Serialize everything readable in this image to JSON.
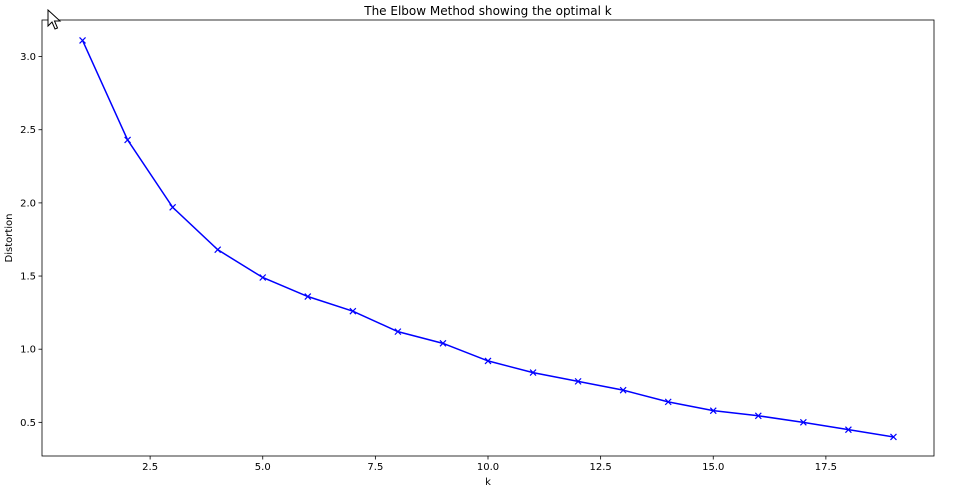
{
  "chart_data": {
    "type": "line",
    "title": "The Elbow Method showing the optimal k",
    "xlabel": "k",
    "ylabel": "Distortion",
    "xlim": [
      0.1,
      19.9
    ],
    "ylim": [
      0.27,
      3.25
    ],
    "xticks": [
      2.5,
      5.0,
      7.5,
      10.0,
      12.5,
      15.0,
      17.5
    ],
    "xtick_labels": [
      "2.5",
      "5.0",
      "7.5",
      "10.0",
      "12.5",
      "15.0",
      "17.5"
    ],
    "yticks": [
      0.5,
      1.0,
      1.5,
      2.0,
      2.5,
      3.0
    ],
    "ytick_labels": [
      "0.5",
      "1.0",
      "1.5",
      "2.0",
      "2.5",
      "3.0"
    ],
    "grid": false,
    "marker": "x",
    "series": [
      {
        "color": "#0000ff",
        "x": [
          1,
          2,
          3,
          4,
          5,
          6,
          7,
          8,
          9,
          10,
          11,
          12,
          13,
          14,
          15,
          16,
          17,
          18,
          19
        ],
        "y": [
          3.11,
          2.43,
          1.97,
          1.68,
          1.49,
          1.36,
          1.26,
          1.12,
          1.04,
          0.92,
          0.84,
          0.78,
          0.72,
          0.64,
          0.58,
          0.545,
          0.5,
          0.45,
          0.4
        ]
      }
    ]
  },
  "ui": {
    "cursor_icon": "arrow-pointer-icon"
  }
}
